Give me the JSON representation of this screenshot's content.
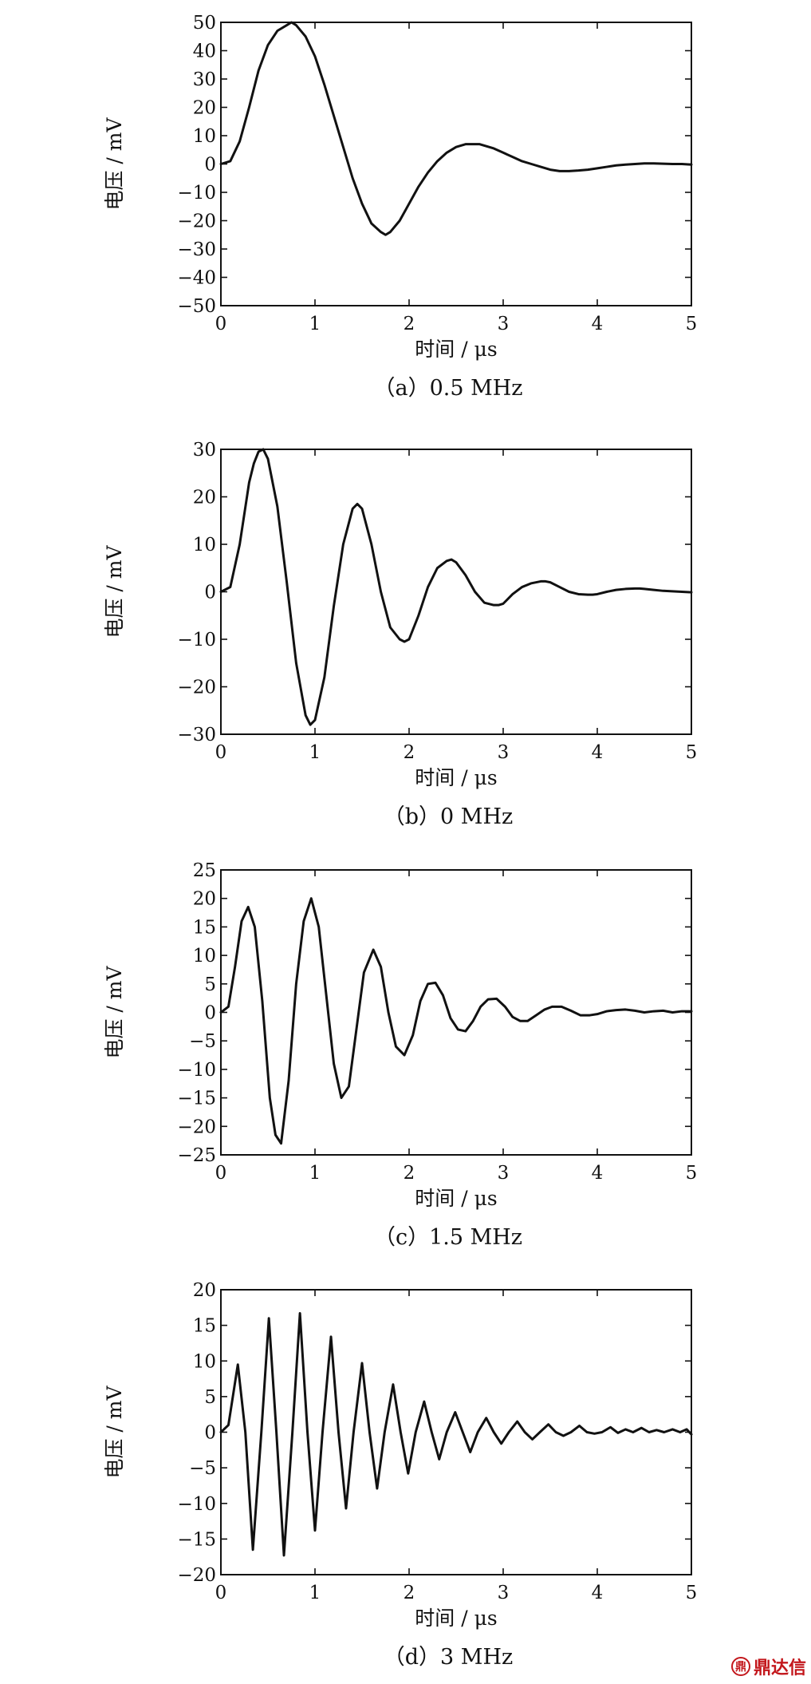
{
  "watermark": {
    "text": "鼎达信",
    "icon": "dingdaxin-logo-icon"
  },
  "chart_data": [
    {
      "type": "line",
      "caption": "（a）0.5 MHz",
      "xlabel": "时间 / μs",
      "ylabel": "电压 / mV",
      "xlim": [
        0,
        5
      ],
      "ylim": [
        -50,
        50
      ],
      "xticks": [
        0,
        1,
        2,
        3,
        4,
        5
      ],
      "yticks": [
        50,
        40,
        30,
        20,
        10,
        0,
        -10,
        -20,
        -30,
        -40,
        -50
      ],
      "grid": false,
      "series": [
        {
          "x": [
            0,
            0.1,
            0.2,
            0.3,
            0.4,
            0.5,
            0.6,
            0.7,
            0.75,
            0.8,
            0.9,
            1.0,
            1.1,
            1.2,
            1.3,
            1.4,
            1.5,
            1.6,
            1.7,
            1.75,
            1.8,
            1.9,
            2.0,
            2.1,
            2.2,
            2.3,
            2.4,
            2.5,
            2.6,
            2.7,
            2.75,
            2.8,
            2.9,
            3.0,
            3.1,
            3.2,
            3.3,
            3.4,
            3.5,
            3.6,
            3.7,
            3.8,
            3.9,
            4.0,
            4.1,
            4.2,
            4.3,
            4.4,
            4.5,
            4.6,
            4.7,
            4.8,
            4.9,
            5.0
          ],
          "y": [
            0,
            1,
            8,
            20,
            33,
            42,
            47,
            49,
            50,
            49,
            45,
            38,
            28,
            17,
            6,
            -5,
            -14,
            -21,
            -24,
            -25,
            -24,
            -20,
            -14,
            -8,
            -3,
            1,
            4,
            6,
            7,
            7,
            7,
            6.5,
            5.5,
            4,
            2.5,
            1,
            0,
            -1,
            -2,
            -2.5,
            -2.5,
            -2.3,
            -2,
            -1.5,
            -1,
            -0.5,
            -0.2,
            0,
            0.2,
            0.2,
            0.1,
            0,
            0,
            -0.2
          ]
        }
      ]
    },
    {
      "type": "line",
      "caption": "（b）0 MHz",
      "xlabel": "时间 / μs",
      "ylabel": "电压 / mV",
      "xlim": [
        0,
        5
      ],
      "ylim": [
        -30,
        30
      ],
      "xticks": [
        0,
        1,
        2,
        3,
        4,
        5
      ],
      "yticks": [
        30,
        20,
        10,
        0,
        -10,
        -20,
        -30
      ],
      "grid": false,
      "series": [
        {
          "x": [
            0,
            0.1,
            0.2,
            0.3,
            0.35,
            0.4,
            0.45,
            0.5,
            0.6,
            0.7,
            0.8,
            0.9,
            0.95,
            1.0,
            1.1,
            1.2,
            1.3,
            1.4,
            1.45,
            1.5,
            1.6,
            1.7,
            1.8,
            1.9,
            1.95,
            2.0,
            2.1,
            2.2,
            2.3,
            2.4,
            2.45,
            2.5,
            2.6,
            2.7,
            2.8,
            2.9,
            2.95,
            3.0,
            3.1,
            3.2,
            3.3,
            3.4,
            3.45,
            3.5,
            3.6,
            3.7,
            3.8,
            3.9,
            3.95,
            4.0,
            4.1,
            4.2,
            4.3,
            4.4,
            4.45,
            4.5,
            4.6,
            4.7,
            4.8,
            4.9,
            5.0
          ],
          "y": [
            0,
            1,
            10,
            23,
            27,
            29.5,
            30,
            28,
            18,
            2,
            -15,
            -26,
            -28,
            -27,
            -18,
            -3,
            10,
            17.5,
            18.5,
            17.5,
            10,
            0,
            -7.5,
            -10,
            -10.5,
            -10,
            -5,
            1,
            5,
            6.5,
            6.8,
            6.2,
            3.5,
            0,
            -2.3,
            -2.8,
            -2.8,
            -2.5,
            -0.5,
            1,
            1.8,
            2.2,
            2.2,
            2,
            1,
            0,
            -0.5,
            -0.6,
            -0.6,
            -0.5,
            0,
            0.4,
            0.6,
            0.7,
            0.7,
            0.6,
            0.4,
            0.2,
            0.1,
            0,
            -0.1
          ]
        }
      ]
    },
    {
      "type": "line",
      "caption": "（c）1.5 MHz",
      "xlabel": "时间 / μs",
      "ylabel": "电压 / mV",
      "xlim": [
        0,
        5
      ],
      "ylim": [
        -25,
        25
      ],
      "xticks": [
        0,
        1,
        2,
        3,
        4,
        5
      ],
      "yticks": [
        25,
        20,
        15,
        10,
        5,
        0,
        -5,
        -10,
        -15,
        -20,
        -25
      ],
      "grid": false,
      "series": [
        {
          "x": [
            0,
            0.08,
            0.15,
            0.22,
            0.29,
            0.36,
            0.44,
            0.52,
            0.58,
            0.64,
            0.72,
            0.8,
            0.88,
            0.96,
            1.04,
            1.12,
            1.2,
            1.28,
            1.36,
            1.44,
            1.52,
            1.62,
            1.7,
            1.78,
            1.86,
            1.95,
            2.04,
            2.12,
            2.2,
            2.28,
            2.36,
            2.44,
            2.52,
            2.6,
            2.68,
            2.76,
            2.84,
            2.93,
            3.02,
            3.1,
            3.18,
            3.26,
            3.35,
            3.44,
            3.52,
            3.62,
            3.72,
            3.82,
            3.92,
            4.0,
            4.1,
            4.2,
            4.3,
            4.4,
            4.5,
            4.6,
            4.7,
            4.8,
            4.9,
            5.0
          ],
          "y": [
            0,
            1,
            8,
            16,
            18.5,
            15,
            2,
            -15,
            -21.5,
            -23,
            -12,
            5,
            16,
            20,
            15,
            3,
            -9,
            -15,
            -13,
            -3,
            7,
            11,
            8,
            0,
            -6,
            -7.5,
            -4,
            2,
            5,
            5.2,
            3,
            -1,
            -3,
            -3.3,
            -1.5,
            1,
            2.3,
            2.4,
            1,
            -0.8,
            -1.5,
            -1.5,
            -0.5,
            0.5,
            1,
            1,
            0.3,
            -0.5,
            -0.5,
            -0.3,
            0.2,
            0.4,
            0.5,
            0.3,
            0,
            0.2,
            0.3,
            0,
            0.2,
            0.2
          ]
        }
      ]
    },
    {
      "type": "line",
      "caption": "（d）3 MHz",
      "xlabel": "时间 / μs",
      "ylabel": "电压 / mV",
      "xlim": [
        0,
        5
      ],
      "ylim": [
        -20,
        20
      ],
      "xticks": [
        0,
        1,
        2,
        3,
        4,
        5
      ],
      "yticks": [
        20,
        15,
        10,
        5,
        0,
        -5,
        -10,
        -15,
        -20
      ],
      "grid": false,
      "series": [
        {
          "x": [
            0,
            0.08,
            0.18,
            0.26,
            0.34,
            0.43,
            0.51,
            0.59,
            0.67,
            0.76,
            0.84,
            0.92,
            1.0,
            1.08,
            1.17,
            1.25,
            1.33,
            1.41,
            1.5,
            1.58,
            1.66,
            1.74,
            1.83,
            1.91,
            1.99,
            2.07,
            2.16,
            2.24,
            2.32,
            2.4,
            2.49,
            2.57,
            2.65,
            2.73,
            2.82,
            2.9,
            2.98,
            3.06,
            3.15,
            3.23,
            3.31,
            3.39,
            3.48,
            3.56,
            3.64,
            3.72,
            3.81,
            3.89,
            3.97,
            4.05,
            4.14,
            4.22,
            4.3,
            4.38,
            4.47,
            4.55,
            4.63,
            4.71,
            4.8,
            4.88,
            4.95,
            5.0
          ],
          "y": [
            0,
            1,
            9.5,
            0,
            -16.5,
            0,
            16,
            0,
            -17.3,
            0,
            16.7,
            0,
            -13.8,
            0,
            13.4,
            0,
            -10.7,
            0,
            9.7,
            0,
            -7.9,
            0,
            6.7,
            0,
            -5.8,
            0,
            4.3,
            0,
            -3.8,
            0,
            2.8,
            0,
            -2.8,
            0,
            2.0,
            0,
            -1.6,
            0,
            1.5,
            0,
            -1.0,
            0,
            1.1,
            0,
            -0.5,
            0,
            0.9,
            0,
            -0.2,
            0,
            0.7,
            -0.1,
            0.4,
            0,
            0.6,
            0,
            0.3,
            0,
            0.4,
            0,
            0.4,
            -0.3
          ]
        }
      ]
    }
  ]
}
